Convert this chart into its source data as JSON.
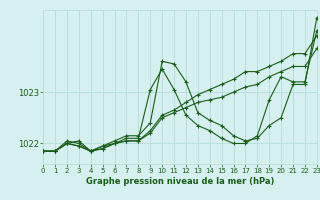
{
  "xlabel": "Graphe pression niveau de la mer (hPa)",
  "bg_color": "#d6f0f0",
  "grid_color": "#b8dede",
  "line_color": "#1a5c1a",
  "xlim": [
    0,
    23
  ],
  "ylim": [
    1021.6,
    1024.6
  ],
  "yticks": [
    1022,
    1023
  ],
  "xticks": [
    0,
    1,
    2,
    3,
    4,
    5,
    6,
    7,
    8,
    9,
    10,
    11,
    12,
    13,
    14,
    15,
    16,
    17,
    18,
    19,
    20,
    21,
    22,
    23
  ],
  "series": [
    [
      1021.85,
      1021.85,
      1022.0,
      1022.05,
      1021.85,
      1021.95,
      1022.05,
      1022.15,
      1022.15,
      1022.4,
      1023.6,
      1023.55,
      1023.2,
      1022.6,
      1022.45,
      1022.35,
      1022.15,
      1022.05,
      1022.1,
      1022.35,
      1022.5,
      1023.15,
      1023.15,
      1024.45
    ],
    [
      1021.85,
      1021.85,
      1022.05,
      1022.0,
      1021.85,
      1021.95,
      1022.0,
      1022.1,
      1022.1,
      1023.05,
      1023.45,
      1023.05,
      1022.55,
      1022.35,
      1022.25,
      1022.1,
      1022.0,
      1022.0,
      1022.15,
      1022.85,
      1023.3,
      1023.2,
      1023.2,
      1024.2
    ],
    [
      1021.85,
      1021.85,
      1022.0,
      1021.95,
      1021.85,
      1021.9,
      1022.0,
      1022.05,
      1022.05,
      1022.25,
      1022.55,
      1022.65,
      1022.8,
      1022.95,
      1023.05,
      1023.15,
      1023.25,
      1023.4,
      1023.4,
      1023.5,
      1023.6,
      1023.75,
      1023.75,
      1024.1
    ],
    [
      1021.85,
      1021.85,
      1022.0,
      1021.95,
      1021.85,
      1021.9,
      1022.0,
      1022.05,
      1022.05,
      1022.2,
      1022.5,
      1022.6,
      1022.7,
      1022.8,
      1022.85,
      1022.9,
      1023.0,
      1023.1,
      1023.15,
      1023.3,
      1023.4,
      1023.5,
      1023.5,
      1023.85
    ]
  ]
}
